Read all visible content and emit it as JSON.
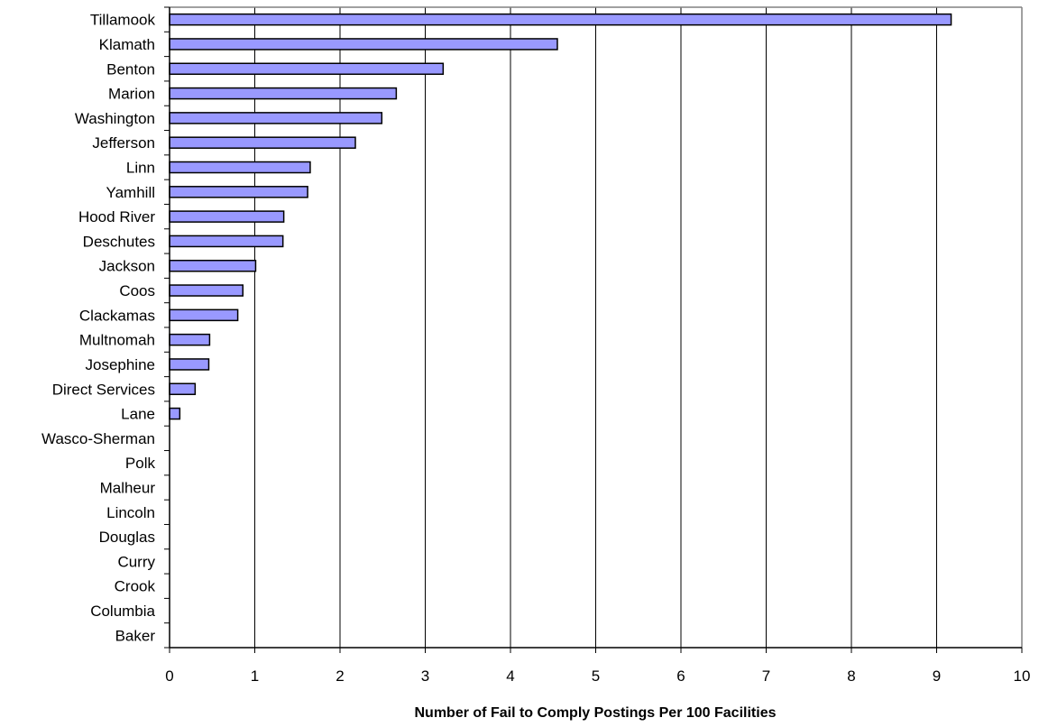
{
  "chart_data": {
    "type": "bar",
    "orientation": "horizontal",
    "title": "",
    "xlabel": "Number of Fail to Comply Postings Per 100 Facilities",
    "ylabel": "",
    "xlim": [
      0,
      10
    ],
    "xticks": [
      0,
      1,
      2,
      3,
      4,
      5,
      6,
      7,
      8,
      9,
      10
    ],
    "grid": "vertical",
    "legend": "none",
    "categories": [
      "Tillamook",
      "Klamath",
      "Benton",
      "Marion",
      "Washington",
      "Jefferson",
      "Linn",
      "Yamhill",
      "Hood River",
      "Deschutes",
      "Jackson",
      "Coos",
      "Clackamas",
      "Multnomah",
      "Josephine",
      "Direct Services",
      "Lane",
      "Wasco-Sherman",
      "Polk",
      "Malheur",
      "Lincoln",
      "Douglas",
      "Curry",
      "Crook",
      "Columbia",
      "Baker"
    ],
    "values": [
      9.17,
      4.55,
      3.21,
      2.66,
      2.49,
      2.18,
      1.65,
      1.62,
      1.34,
      1.33,
      1.01,
      0.86,
      0.8,
      0.47,
      0.46,
      0.3,
      0.12,
      0,
      0,
      0,
      0,
      0,
      0,
      0,
      0,
      0
    ],
    "colors": {
      "bar_fill": "#9999ff",
      "bar_stroke": "#000000",
      "grid": "#000000",
      "frame": "#808080"
    }
  }
}
